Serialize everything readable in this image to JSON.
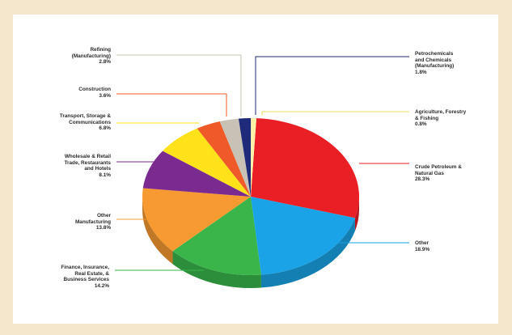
{
  "chart_data": {
    "type": "pie",
    "title": "",
    "slices": [
      {
        "label": "Crude Petroleum &\nNatural Gas",
        "value_label": "28.3%",
        "value": 28.3,
        "color": "#ea1e25"
      },
      {
        "label": "Other",
        "value_label": "18.9%",
        "value": 18.9,
        "color": "#1aa3e6"
      },
      {
        "label": "Finance, Insurance,\nReal Estate, &\nBusiness Services",
        "value_label": "14.2%",
        "value": 14.2,
        "color": "#39b54a"
      },
      {
        "label": "Other\nManufacturing",
        "value_label": "13.8%",
        "value": 13.8,
        "color": "#f79a31"
      },
      {
        "label": "Wholesale & Retail\nTrade, Restaurants\nand Hotels",
        "value_label": "8.1%",
        "value": 8.1,
        "color": "#7b2a8f"
      },
      {
        "label": "Transport, Storage &\nCommunications",
        "value_label": "6.8%",
        "value": 6.8,
        "color": "#ffe21a"
      },
      {
        "label": "Construction",
        "value_label": "3.6%",
        "value": 3.6,
        "color": "#f05a28"
      },
      {
        "label": "Refining\n(Manufacturing)",
        "value_label": "2.8%",
        "value": 2.8,
        "color": "#c8c2b6"
      },
      {
        "label": "Petrochemicals\nand Chemicals\n(Manufacturing)",
        "value_label": "1.8%",
        "value": 1.8,
        "color": "#1f2a7a"
      },
      {
        "label": "Agriculture, Forestry\n& Fishing",
        "value_label": "0.8%",
        "value": 0.8,
        "color": "#fff3a8"
      }
    ]
  }
}
